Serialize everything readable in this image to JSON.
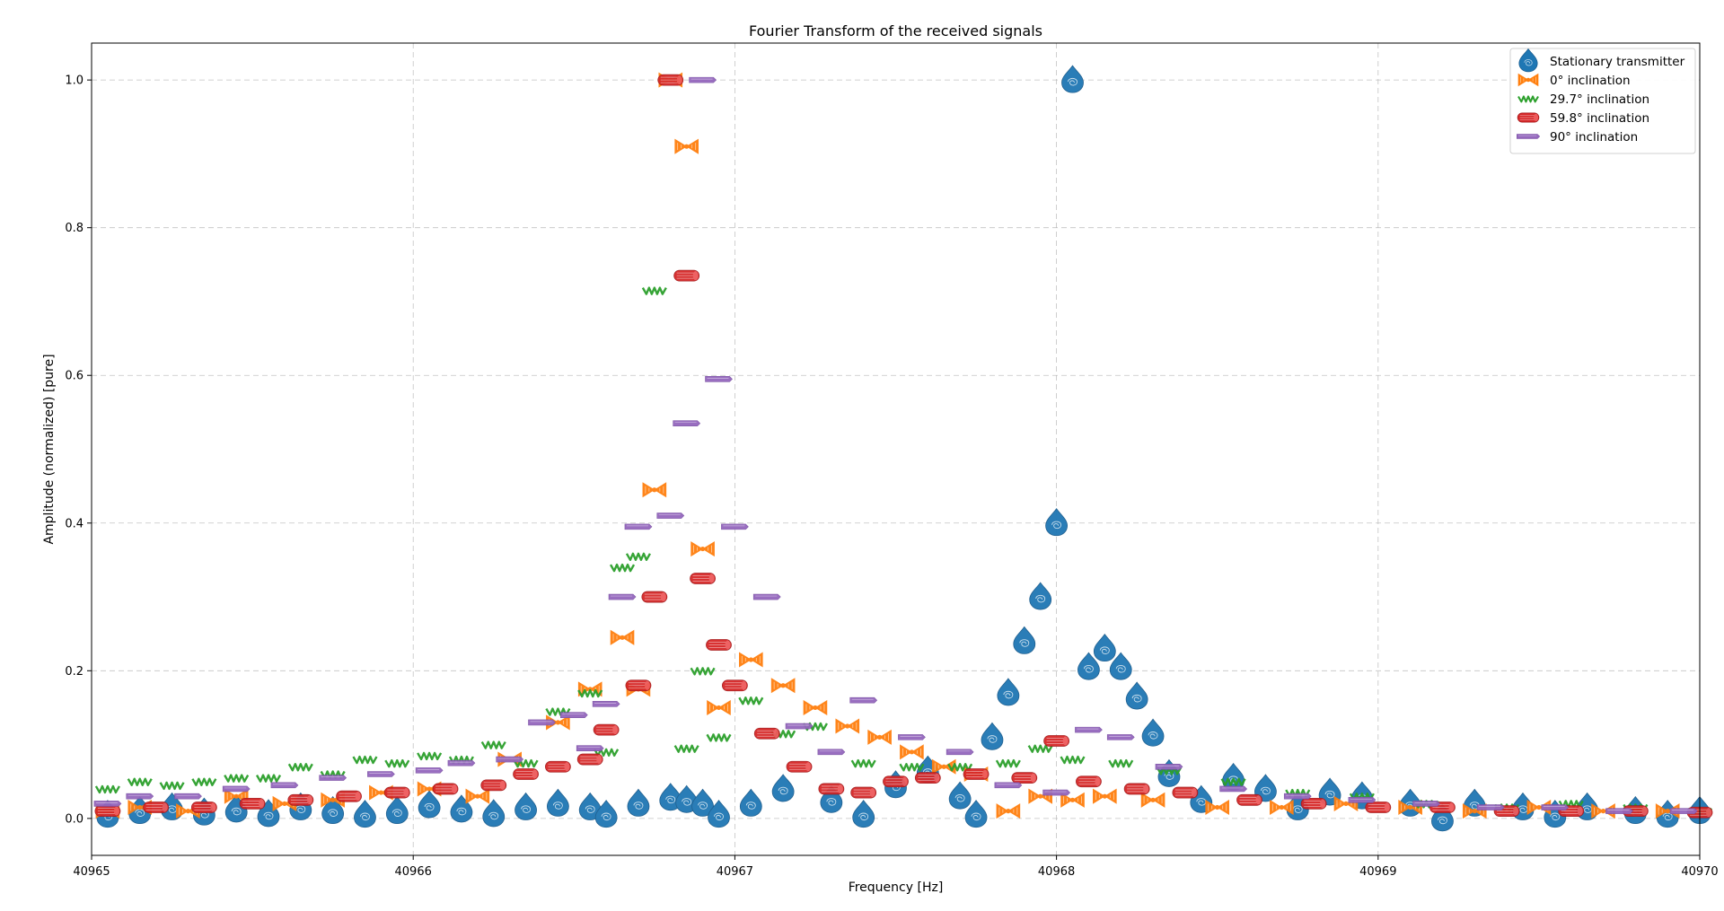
{
  "chart_data": {
    "type": "scatter",
    "title": "Fourier Transform of the received signals",
    "xlabel": "Frequency [Hz]",
    "ylabel": "Amplitude (normalized) [pure]",
    "xlim": [
      40965,
      40970
    ],
    "ylim": [
      -0.05,
      1.05
    ],
    "x_ticks": [
      40965,
      40966,
      40967,
      40968,
      40969,
      40970
    ],
    "y_ticks": [
      0.0,
      0.2,
      0.4,
      0.6,
      0.8,
      1.0
    ],
    "x_tick_labels": [
      "40965",
      "40966",
      "40967",
      "40968",
      "40969",
      "40970"
    ],
    "y_tick_labels": [
      "0.0",
      "0.2",
      "0.4",
      "0.6",
      "0.8",
      "1.0"
    ],
    "grid": true,
    "legend_position": "top-right",
    "series": [
      {
        "name": "Stationary transmitter",
        "color": "#1f77b4",
        "marker": "teardrop",
        "x": [
          40965.05,
          40965.15,
          40965.25,
          40965.35,
          40965.45,
          40965.55,
          40965.65,
          40965.75,
          40965.85,
          40965.95,
          40966.05,
          40966.15,
          40966.25,
          40966.35,
          40966.45,
          40966.55,
          40966.6,
          40966.7,
          40966.8,
          40966.85,
          40966.9,
          40966.95,
          40967.05,
          40967.15,
          40967.3,
          40967.4,
          40967.5,
          40967.6,
          40967.7,
          40967.75,
          40967.8,
          40967.85,
          40967.9,
          40967.95,
          40968.0,
          40968.05,
          40968.1,
          40968.15,
          40968.2,
          40968.25,
          40968.3,
          40968.35,
          40968.45,
          40968.55,
          40968.65,
          40968.75,
          40968.85,
          40968.95,
          40969.1,
          40969.2,
          40969.3,
          40969.45,
          40969.55,
          40969.65,
          40969.8,
          40969.9,
          40970.0
        ],
        "y": [
          0.005,
          0.01,
          0.015,
          0.008,
          0.012,
          0.006,
          0.015,
          0.01,
          0.005,
          0.01,
          0.018,
          0.012,
          0.006,
          0.015,
          0.02,
          0.015,
          0.005,
          0.02,
          0.028,
          0.025,
          0.02,
          0.005,
          0.02,
          0.04,
          0.025,
          0.005,
          0.045,
          0.065,
          0.03,
          0.005,
          0.11,
          0.17,
          0.24,
          0.3,
          0.4,
          1.0,
          0.205,
          0.23,
          0.205,
          0.165,
          0.115,
          0.06,
          0.025,
          0.055,
          0.04,
          0.015,
          0.035,
          0.03,
          0.02,
          0.0,
          0.02,
          0.015,
          0.005,
          0.015,
          0.01,
          0.005,
          0.01
        ]
      },
      {
        "name": "0° inclination",
        "color": "#ff7f0e",
        "marker": "bowtie",
        "x": [
          40965.05,
          40965.15,
          40965.3,
          40965.45,
          40965.6,
          40965.75,
          40965.9,
          40966.05,
          40966.2,
          40966.3,
          40966.45,
          40966.55,
          40966.65,
          40966.7,
          40966.75,
          40966.8,
          40966.85,
          40966.9,
          40966.95,
          40967.05,
          40967.15,
          40967.25,
          40967.35,
          40967.45,
          40967.55,
          40967.65,
          40967.75,
          40967.85,
          40967.95,
          40968.05,
          40968.15,
          40968.3,
          40968.5,
          40968.7,
          40968.9,
          40969.1,
          40969.3,
          40969.5,
          40969.7,
          40969.9
        ],
        "y": [
          0.01,
          0.015,
          0.01,
          0.03,
          0.02,
          0.025,
          0.035,
          0.04,
          0.03,
          0.08,
          0.13,
          0.175,
          0.245,
          0.175,
          0.445,
          1.0,
          0.91,
          0.365,
          0.15,
          0.215,
          0.18,
          0.15,
          0.125,
          0.11,
          0.09,
          0.07,
          0.06,
          0.01,
          0.03,
          0.025,
          0.03,
          0.025,
          0.015,
          0.015,
          0.02,
          0.015,
          0.01,
          0.015,
          0.01,
          0.01
        ]
      },
      {
        "name": "29.7° inclination",
        "color": "#2ca02c",
        "marker": "tick",
        "x": [
          40965.05,
          40965.15,
          40965.25,
          40965.35,
          40965.45,
          40965.55,
          40965.65,
          40965.75,
          40965.85,
          40965.95,
          40966.05,
          40966.15,
          40966.25,
          40966.35,
          40966.45,
          40966.55,
          40966.6,
          40966.65,
          40966.7,
          40966.75,
          40966.85,
          40966.9,
          40966.95,
          40967.05,
          40967.15,
          40967.25,
          40967.4,
          40967.55,
          40967.7,
          40967.85,
          40967.95,
          40968.05,
          40968.2,
          40968.35,
          40968.55,
          40968.75,
          40968.95,
          40969.15,
          40969.4,
          40969.6,
          40969.8,
          40970.0
        ],
        "y": [
          0.04,
          0.05,
          0.045,
          0.05,
          0.055,
          0.055,
          0.07,
          0.06,
          0.08,
          0.075,
          0.085,
          0.08,
          0.1,
          0.075,
          0.145,
          0.17,
          0.09,
          0.34,
          0.355,
          0.715,
          0.095,
          0.2,
          0.11,
          0.16,
          0.115,
          0.125,
          0.075,
          0.07,
          0.07,
          0.075,
          0.095,
          0.08,
          0.075,
          0.065,
          0.05,
          0.035,
          0.03,
          0.02,
          0.015,
          0.02,
          0.015,
          0.01
        ]
      },
      {
        "name": "59.8° inclination",
        "color": "#d62728",
        "marker": "cylinder",
        "x": [
          40965.05,
          40965.2,
          40965.35,
          40965.5,
          40965.65,
          40965.8,
          40965.95,
          40966.1,
          40966.25,
          40966.35,
          40966.45,
          40966.55,
          40966.6,
          40966.7,
          40966.75,
          40966.8,
          40966.85,
          40966.9,
          40966.95,
          40967.0,
          40967.1,
          40967.2,
          40967.3,
          40967.4,
          40967.5,
          40967.6,
          40967.75,
          40967.9,
          40968.0,
          40968.1,
          40968.25,
          40968.4,
          40968.6,
          40968.8,
          40969.0,
          40969.2,
          40969.4,
          40969.6,
          40969.8,
          40970.0
        ],
        "y": [
          0.01,
          0.015,
          0.015,
          0.02,
          0.025,
          0.03,
          0.035,
          0.04,
          0.045,
          0.06,
          0.07,
          0.08,
          0.12,
          0.18,
          0.3,
          1.0,
          0.735,
          0.325,
          0.235,
          0.18,
          0.115,
          0.07,
          0.04,
          0.035,
          0.05,
          0.055,
          0.06,
          0.055,
          0.105,
          0.05,
          0.04,
          0.035,
          0.025,
          0.02,
          0.015,
          0.015,
          0.01,
          0.01,
          0.01,
          0.008
        ]
      },
      {
        "name": "90° inclination",
        "color": "#9467bd",
        "marker": "slab",
        "x": [
          40965.05,
          40965.15,
          40965.3,
          40965.45,
          40965.6,
          40965.75,
          40965.9,
          40966.05,
          40966.15,
          40966.3,
          40966.4,
          40966.5,
          40966.55,
          40966.6,
          40966.65,
          40966.7,
          40966.8,
          40966.85,
          40966.9,
          40966.95,
          40967.0,
          40967.1,
          40967.2,
          40967.3,
          40967.4,
          40967.55,
          40967.7,
          40967.85,
          40968.0,
          40968.1,
          40968.2,
          40968.35,
          40968.55,
          40968.75,
          40968.95,
          40969.15,
          40969.35,
          40969.55,
          40969.75,
          40969.95
        ],
        "y": [
          0.02,
          0.03,
          0.03,
          0.04,
          0.045,
          0.055,
          0.06,
          0.065,
          0.075,
          0.08,
          0.13,
          0.14,
          0.095,
          0.155,
          0.3,
          0.395,
          0.41,
          0.535,
          1.0,
          0.595,
          0.395,
          0.3,
          0.125,
          0.09,
          0.16,
          0.11,
          0.09,
          0.045,
          0.035,
          0.12,
          0.11,
          0.07,
          0.04,
          0.03,
          0.025,
          0.02,
          0.015,
          0.015,
          0.01,
          0.01
        ]
      }
    ]
  }
}
